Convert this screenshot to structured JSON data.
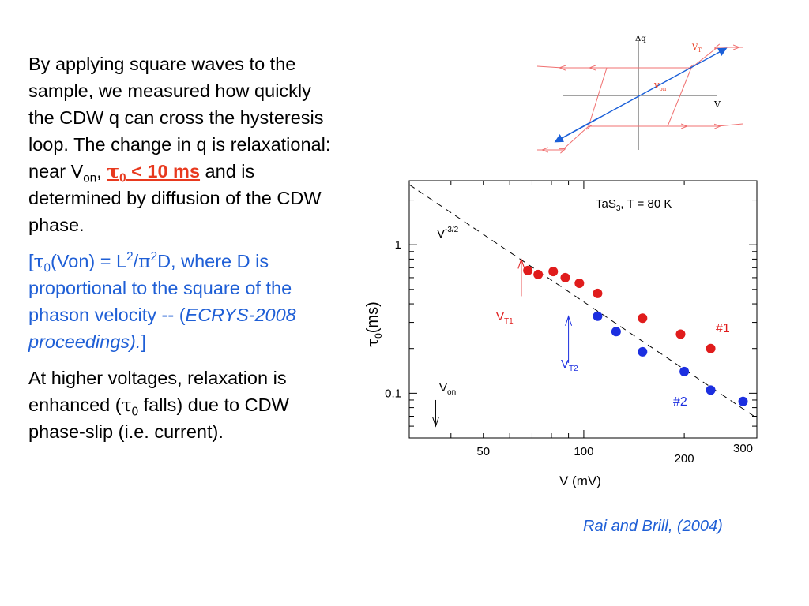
{
  "text": {
    "p1_a": "By applying square waves to the sample, we measured how quickly the CDW q can cross the hysteresis loop. The change in q is relaxational: near V",
    "p1_sub_on": "on",
    "p1_b": ", ",
    "p1_tau": "τ",
    "p1_tau_sub": "0",
    "p1_emph": " < 10 ms",
    "p1_c": " and is determined by diffusion of the CDW phase.",
    "p2_a": "[",
    "p2_tau": "τ",
    "p2_tau_sub": "0",
    "p2_b": "(Von) = L",
    "p2_sup1": "2",
    "p2_c": "/",
    "p2_pi": "π",
    "p2_sup2": "2",
    "p2_d": "D, where D is proportional to the square of the phason velocity -- (",
    "p2_italic": "ECRYS-2008 proceedings).",
    "p2_e": "]",
    "p3_a": "At higher voltages, relaxation is enhanced (",
    "p3_tau": "τ",
    "p3_tau_sub": "0",
    "p3_b": " falls) due to CDW phase-slip (i.e. current)."
  },
  "hysteresis": {
    "y_label": "Δq",
    "x_label": "V",
    "vt_label": "V",
    "vt_sub": "T",
    "von_label": "V",
    "von_sub": "on",
    "colors": {
      "loop": "#f07070",
      "arrow": "#1a5fd8",
      "axis": "#444444"
    }
  },
  "chart_data": {
    "type": "scatter",
    "title": "TaS",
    "title_sub": "3",
    "title_rest": ",  T = 80 K",
    "xlabel": "V  (mV)",
    "ylabel_sym": "τ",
    "ylabel_sub": "0",
    "ylabel_rest": "(ms)",
    "x_scale": "log",
    "y_scale": "log",
    "xlim": [
      30,
      330
    ],
    "ylim": [
      0.05,
      2.7
    ],
    "x_ticks": [
      {
        "value": 50,
        "label": "50"
      },
      {
        "value": 100,
        "label": "100"
      },
      {
        "value": 200,
        "label": "200"
      },
      {
        "value": 300,
        "label": "300"
      }
    ],
    "y_ticks": [
      {
        "value": 1,
        "label": "1"
      },
      {
        "value": 0.1,
        "label": "0.1"
      }
    ],
    "reference_line": {
      "label": "V",
      "label_sup": "-3/2",
      "slope": -1.5,
      "x": [
        30,
        330
      ],
      "y": [
        2.54,
        0.068
      ]
    },
    "series": [
      {
        "name": "#1",
        "color": "#e01c1c",
        "x": [
          68,
          73,
          81,
          88,
          97,
          110,
          150,
          195,
          240
        ],
        "y": [
          0.67,
          0.63,
          0.66,
          0.6,
          0.55,
          0.47,
          0.32,
          0.25,
          0.2
        ]
      },
      {
        "name": "#2",
        "color": "#1c2fe0",
        "x": [
          110,
          125,
          150,
          200,
          240,
          300
        ],
        "y": [
          0.33,
          0.26,
          0.19,
          0.14,
          0.105,
          0.088
        ]
      }
    ],
    "annotations": [
      {
        "id": "vt1",
        "label": "V",
        "sub": "T1",
        "x": 65,
        "color": "#e01c1c"
      },
      {
        "id": "vt2",
        "label": "V",
        "sub": "T2",
        "x": 90,
        "color": "#1c2fe0"
      },
      {
        "id": "von",
        "label": "V",
        "sub": "on",
        "x": 36,
        "color": "#000000"
      }
    ]
  },
  "citation": "Rai and Brill, (2004)"
}
